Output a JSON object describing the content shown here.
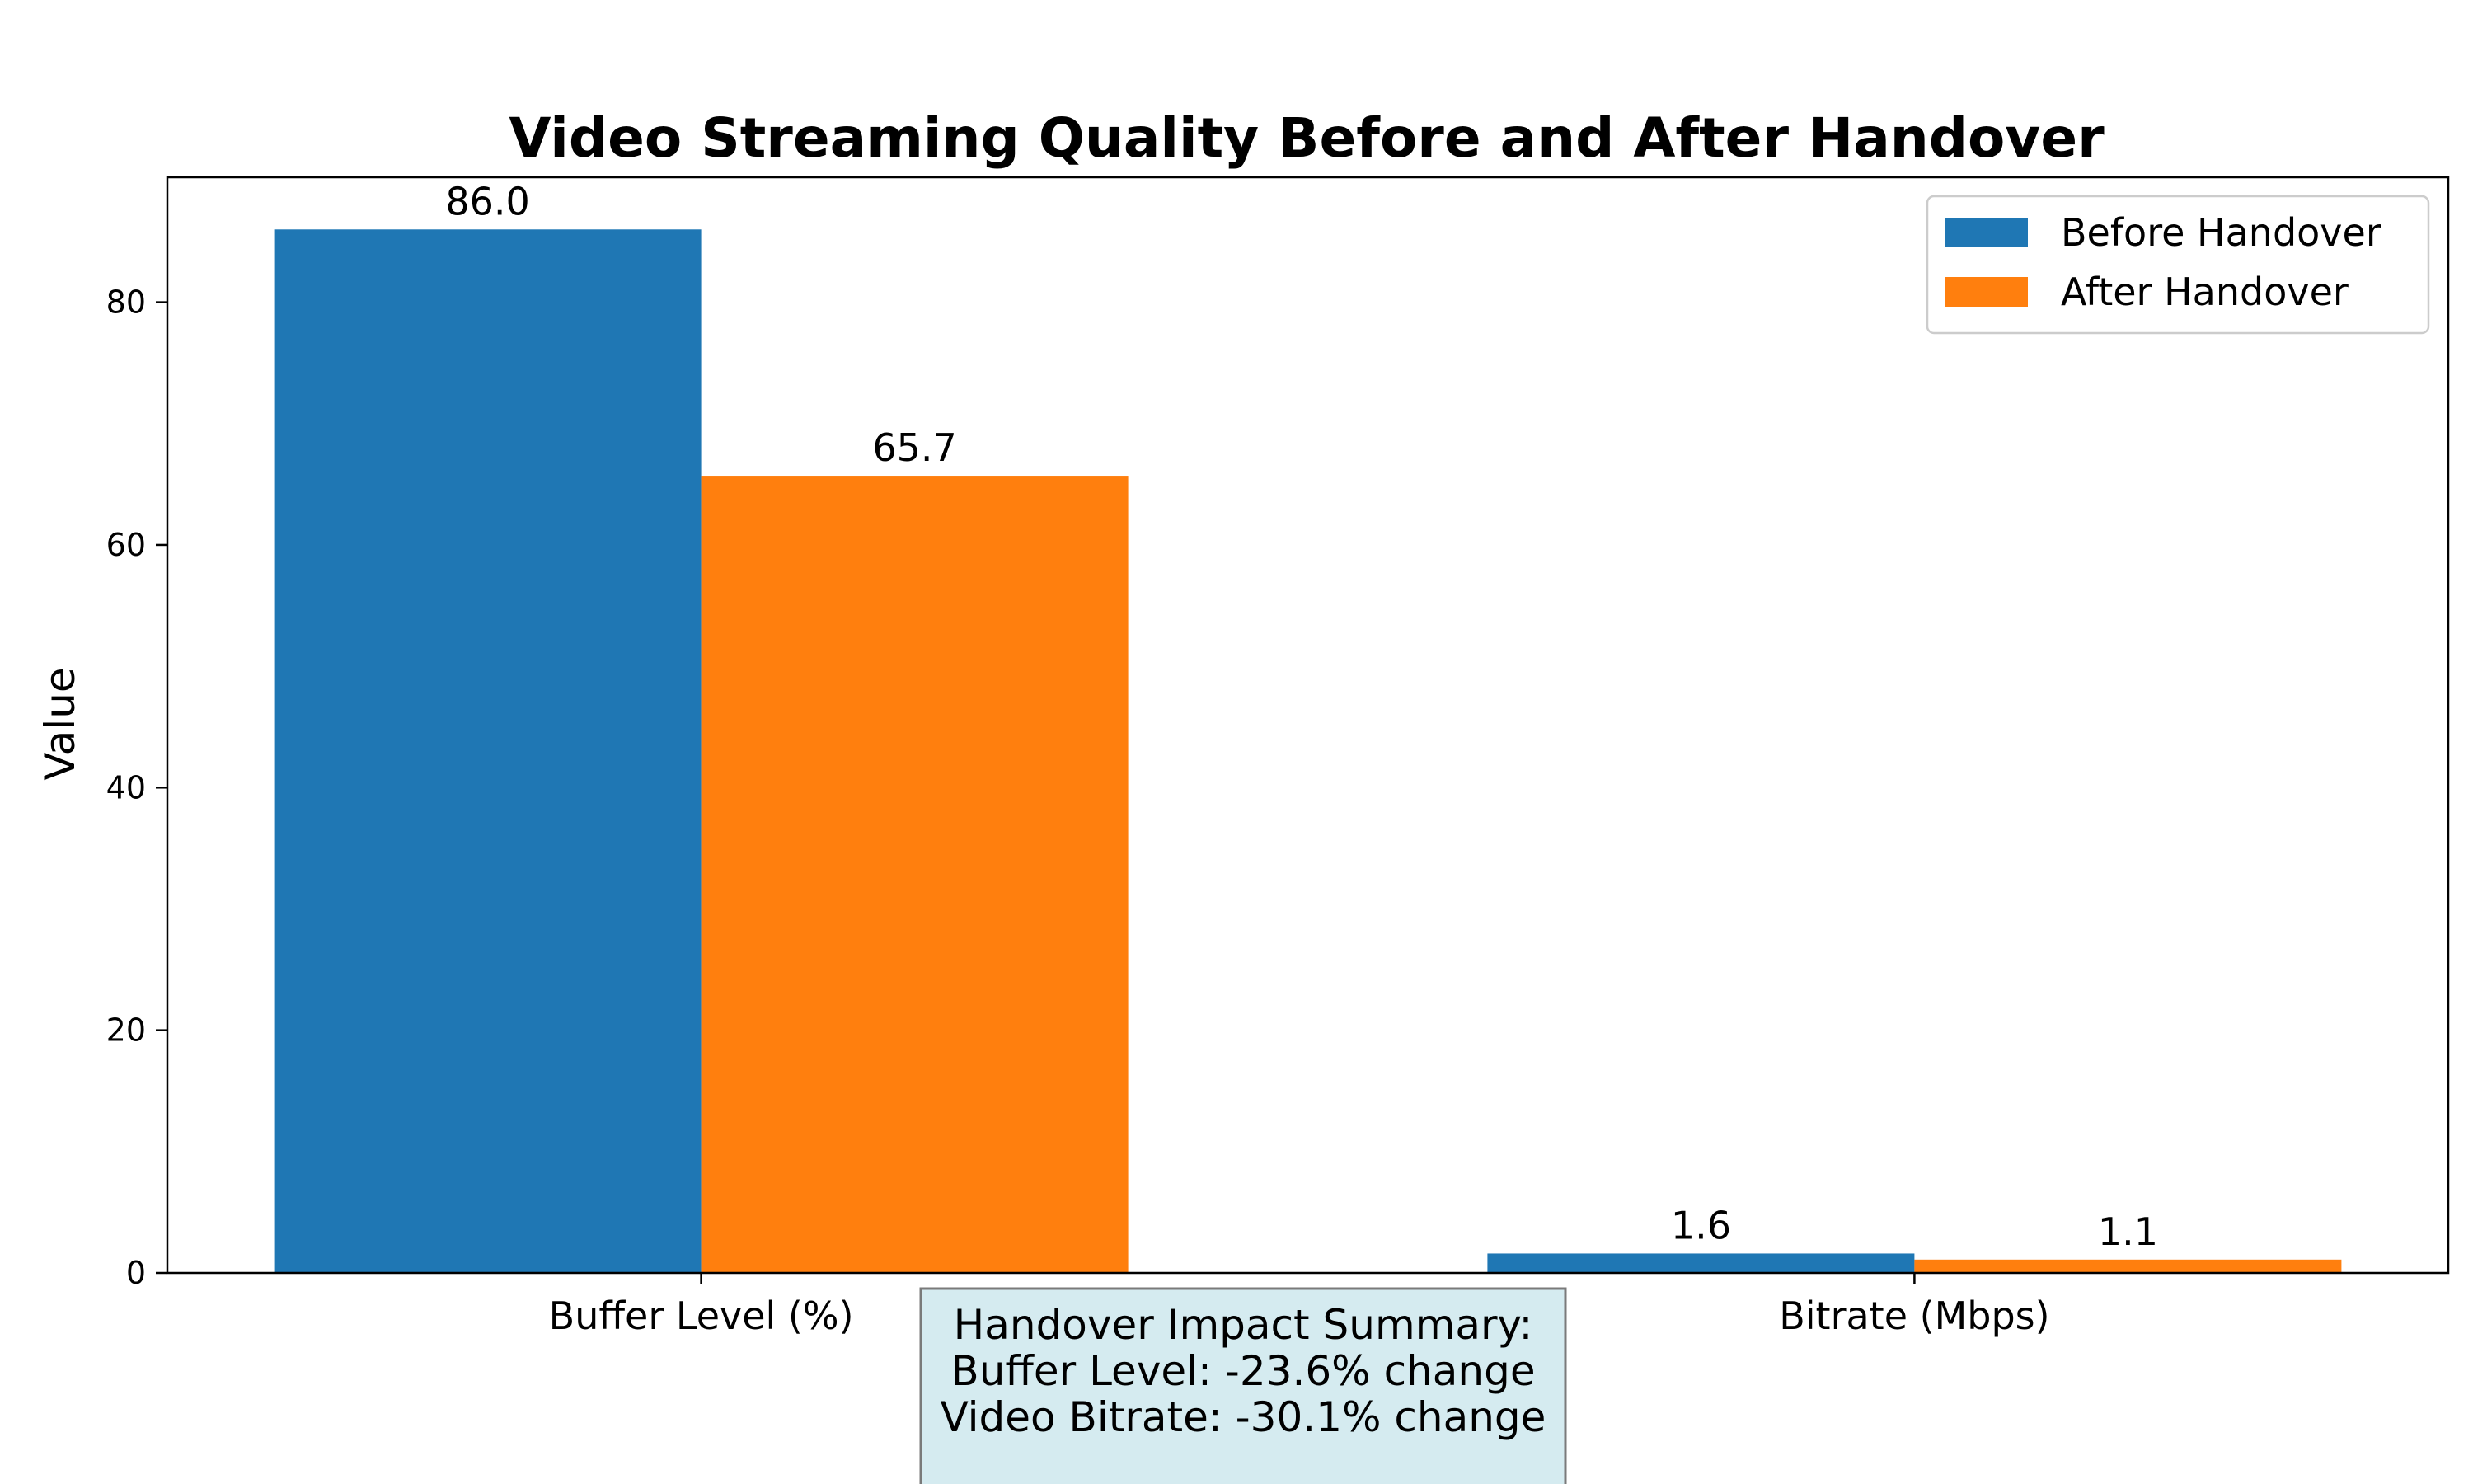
{
  "chart_data": {
    "type": "bar",
    "title": "Video Streaming Quality Before and After Handover",
    "xlabel": "",
    "ylabel": "Value",
    "categories": [
      "Buffer Level (%)",
      "Bitrate (Mbps)"
    ],
    "series": [
      {
        "name": "Before Handover",
        "values": [
          86.0,
          1.6
        ],
        "labels": [
          "86.0",
          "1.6"
        ],
        "color": "#1f77b4"
      },
      {
        "name": "After Handover",
        "values": [
          65.7,
          1.1
        ],
        "labels": [
          "65.7",
          "1.1"
        ],
        "color": "#ff7f0e"
      }
    ],
    "ylim": [
      0,
      90.3
    ],
    "yticks": [
      0,
      20,
      40,
      60,
      80
    ],
    "ytick_labels": [
      "0",
      "20",
      "40",
      "60",
      "80"
    ],
    "grid": false,
    "legend_position": "top-right",
    "annotation": {
      "lines": [
        "Handover Impact Summary:",
        "Buffer Level: -23.6% change",
        "Video Bitrate: -30.1% change"
      ],
      "background": "#d5ebf0",
      "border": "#7a7a7a"
    }
  }
}
